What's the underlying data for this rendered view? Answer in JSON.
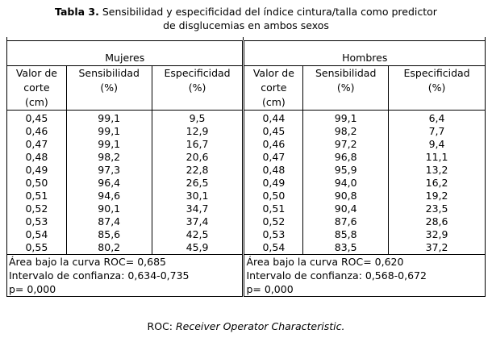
{
  "caption": {
    "label": "Tabla 3.",
    "line1": " Sensibilidad y especificidad del índice cintura/talla como predictor",
    "line2": "de disglucemias en ambos sexos"
  },
  "groups": {
    "women": "Mujeres",
    "men": "Hombres"
  },
  "headers": {
    "cutoff": [
      "Valor de",
      "corte",
      "(cm)"
    ],
    "sensitivity": [
      "Sensibilidad",
      "(%)"
    ],
    "specificity": [
      "Especificidad",
      "(%)"
    ]
  },
  "women_rows": [
    [
      "0,45",
      "99,1",
      "9,5"
    ],
    [
      "0,46",
      "99,1",
      "12,9"
    ],
    [
      "0,47",
      "99,1",
      "16,7"
    ],
    [
      "0,48",
      "98,2",
      "20,6"
    ],
    [
      "0,49",
      "97,3",
      "22,8"
    ],
    [
      "0,50",
      "96,4",
      "26,5"
    ],
    [
      "0,51",
      "94,6",
      "30,1"
    ],
    [
      "0,52",
      "90,1",
      "34,7"
    ],
    [
      "0,53",
      "87,4",
      "37,4"
    ],
    [
      "0,54",
      "85,6",
      "42,5"
    ],
    [
      "0,55",
      "80,2",
      "45,9"
    ]
  ],
  "men_rows": [
    [
      "0,44",
      "99,1",
      "6,4"
    ],
    [
      "0,45",
      "98,2",
      "7,7"
    ],
    [
      "0,46",
      "97,2",
      "9,4"
    ],
    [
      "0,47",
      "96,8",
      "11,1"
    ],
    [
      "0,48",
      "95,9",
      "13,2"
    ],
    [
      "0,49",
      "94,0",
      "16,2"
    ],
    [
      "0,50",
      "90,8",
      "19,2"
    ],
    [
      "0,51",
      "90,4",
      "23,5"
    ],
    [
      "0,52",
      "87,6",
      "28,6"
    ],
    [
      "0,53",
      "85,8",
      "32,9"
    ],
    [
      "0,54",
      "83,5",
      "37,2"
    ]
  ],
  "footer": {
    "women": [
      "Área bajo la curva ROC= 0,685",
      "Intervalo de confianza: 0,634-0,735",
      "p= 0,000"
    ],
    "men": [
      "Área bajo la curva ROC= 0,620",
      "Intervalo de confianza: 0,568-0,672",
      "p= 0,000"
    ]
  },
  "note": {
    "abbr": "ROC: ",
    "expansion": "Receiver Operator Characteristic."
  }
}
